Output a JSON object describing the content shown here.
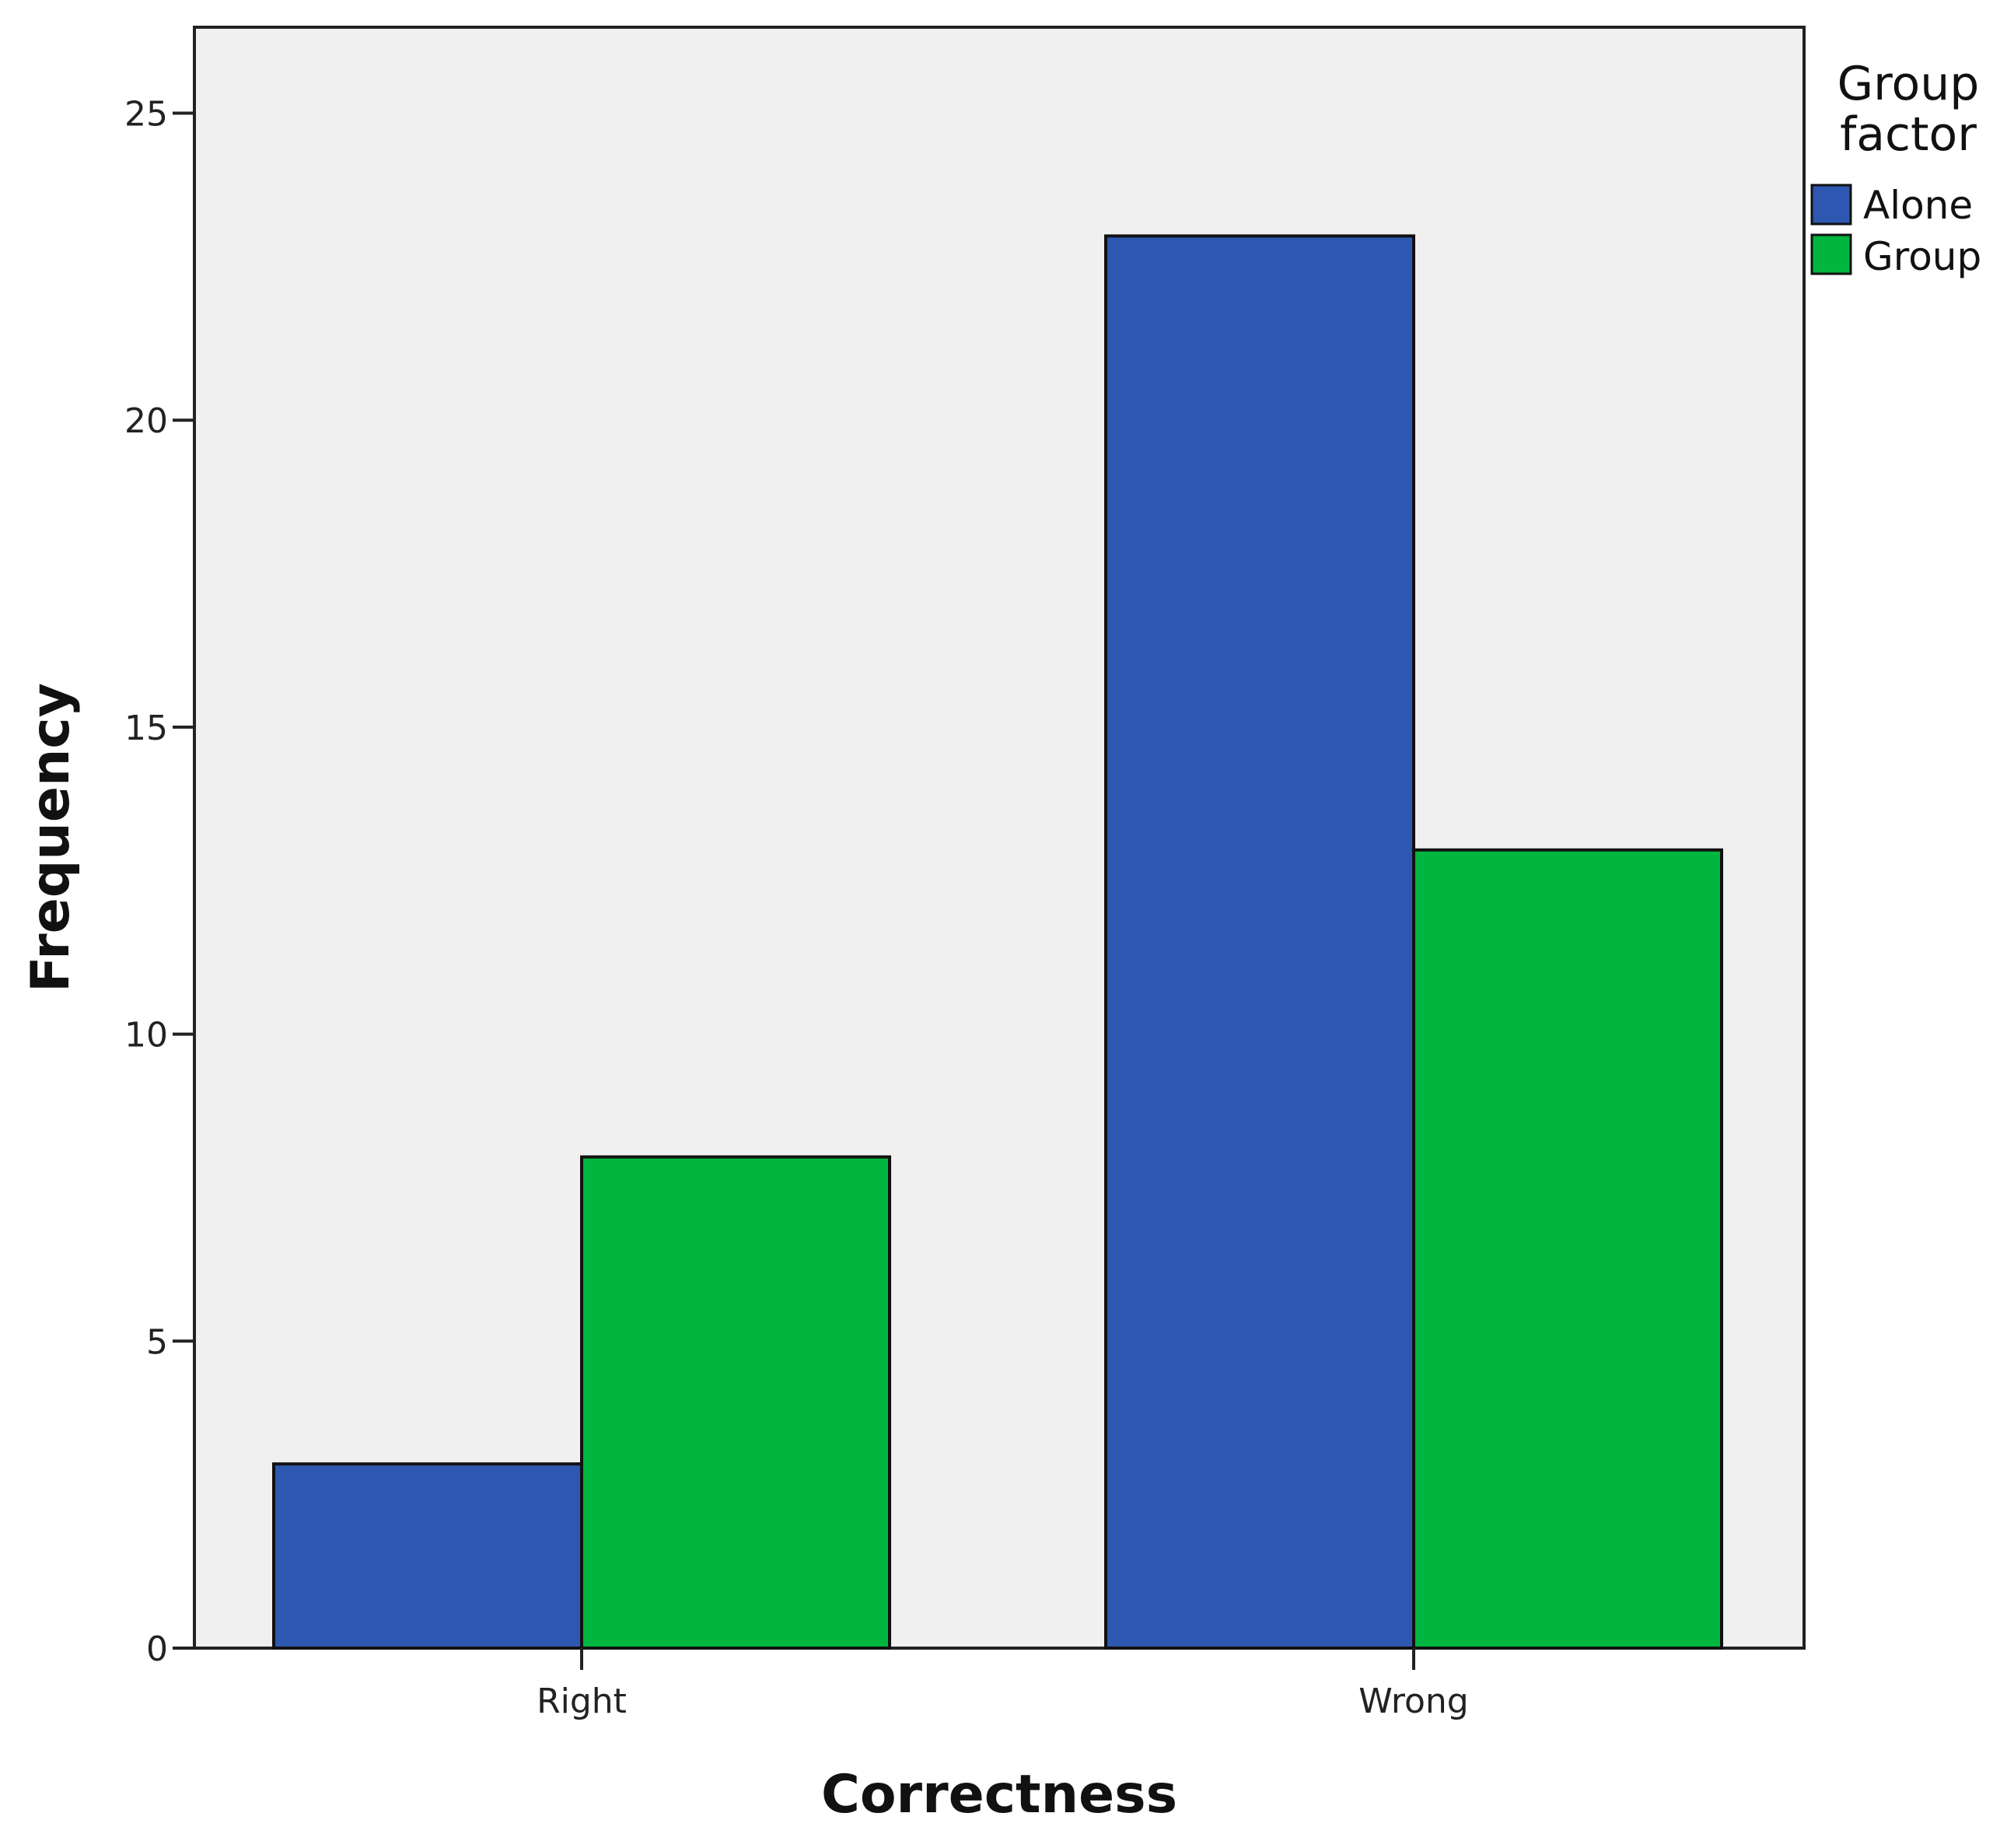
{
  "chart_data": {
    "type": "bar",
    "categories": [
      "Right",
      "Wrong"
    ],
    "series": [
      {
        "name": "Alone",
        "values": [
          3,
          23
        ],
        "color": "#2D57B0"
      },
      {
        "name": "Group",
        "values": [
          8,
          13
        ],
        "color": "#00B63E"
      }
    ],
    "xlabel": "Correctness",
    "ylabel": "Frequency",
    "ylim": [
      0,
      26.4
    ],
    "yticks": [
      0,
      5,
      10,
      15,
      20,
      25
    ],
    "legend": {
      "title_lines": [
        "Group",
        "factor"
      ],
      "placement": "right"
    },
    "plot_background": "#F0F0F0",
    "grid": false
  }
}
